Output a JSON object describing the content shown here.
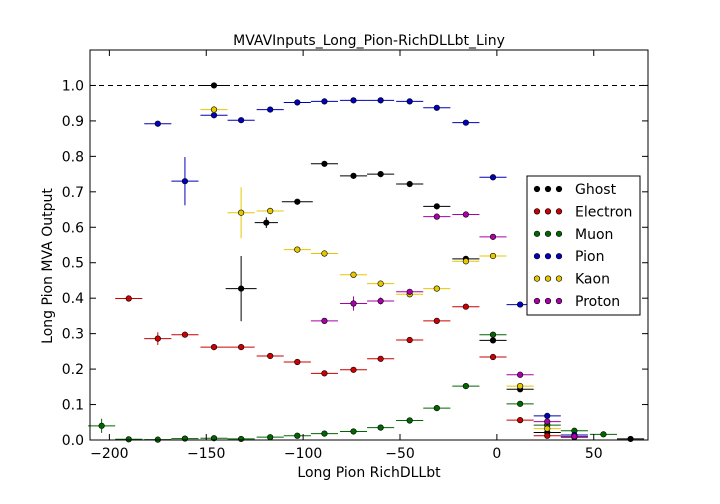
{
  "chart_data": {
    "type": "scatter",
    "title": "MVAVInputs_Long_Pion-RichDLLbt_Liny",
    "xlabel": "Long Pion RichDLLbt",
    "ylabel": "Long Pion MVA Output",
    "xlim": [
      -210,
      78
    ],
    "ylim": [
      0.0,
      1.1
    ],
    "xticks": [
      "−200",
      "−150",
      "−100",
      "−50",
      "0",
      "50"
    ],
    "yticks": [
      "0.0",
      "0.1",
      "0.2",
      "0.3",
      "0.4",
      "0.5",
      "0.6",
      "0.7",
      "0.8",
      "0.9",
      "1.0"
    ],
    "reference_line_y": 1.0,
    "grid": false,
    "legend_position": "right",
    "series": [
      {
        "name": "Ghost",
        "color": "#000000",
        "points": [
          {
            "x": -146,
            "y": 1.0,
            "xerr": 6,
            "yerr": 0.0
          },
          {
            "x": -119,
            "y": 0.613,
            "xerr": 6,
            "yerr": 0.015
          },
          {
            "x": -132,
            "y": 0.427,
            "xerr": 8,
            "yerr": 0.092
          },
          {
            "x": -103,
            "y": 0.672,
            "xerr": 8,
            "yerr": 0.0
          },
          {
            "x": -89,
            "y": 0.779,
            "xerr": 7,
            "yerr": 0.0
          },
          {
            "x": -74,
            "y": 0.745,
            "xerr": 7,
            "yerr": 0.0
          },
          {
            "x": -60,
            "y": 0.75,
            "xerr": 7,
            "yerr": 0.0
          },
          {
            "x": -45,
            "y": 0.722,
            "xerr": 7,
            "yerr": 0.0
          },
          {
            "x": -31,
            "y": 0.659,
            "xerr": 7,
            "yerr": 0.0
          },
          {
            "x": -16,
            "y": 0.511,
            "xerr": 7,
            "yerr": 0.0
          },
          {
            "x": -2,
            "y": 0.281,
            "xerr": 7,
            "yerr": 0.0
          },
          {
            "x": 12,
            "y": 0.143,
            "xerr": 7,
            "yerr": 0.0
          },
          {
            "x": 26,
            "y": 0.021,
            "xerr": 7,
            "yerr": 0.0
          },
          {
            "x": 40,
            "y": 0.008,
            "xerr": 7,
            "yerr": 0.0
          },
          {
            "x": 69,
            "y": 0.003,
            "xerr": 7,
            "yerr": 0.0
          }
        ]
      },
      {
        "name": "Electron",
        "color": "#cc0000",
        "points": [
          {
            "x": -190,
            "y": 0.399,
            "xerr": 7,
            "yerr": 0.0
          },
          {
            "x": -175,
            "y": 0.286,
            "xerr": 7,
            "yerr": 0.018
          },
          {
            "x": -161,
            "y": 0.297,
            "xerr": 7,
            "yerr": 0.008
          },
          {
            "x": -146,
            "y": 0.262,
            "xerr": 7,
            "yerr": 0.0
          },
          {
            "x": -132,
            "y": 0.262,
            "xerr": 7,
            "yerr": 0.0
          },
          {
            "x": -117,
            "y": 0.237,
            "xerr": 7,
            "yerr": 0.0
          },
          {
            "x": -103,
            "y": 0.22,
            "xerr": 7,
            "yerr": 0.0
          },
          {
            "x": -89,
            "y": 0.188,
            "xerr": 7,
            "yerr": 0.0
          },
          {
            "x": -74,
            "y": 0.198,
            "xerr": 7,
            "yerr": 0.0
          },
          {
            "x": -60,
            "y": 0.229,
            "xerr": 7,
            "yerr": 0.0
          },
          {
            "x": -45,
            "y": 0.282,
            "xerr": 7,
            "yerr": 0.0
          },
          {
            "x": -31,
            "y": 0.336,
            "xerr": 7,
            "yerr": 0.0
          },
          {
            "x": -16,
            "y": 0.376,
            "xerr": 7,
            "yerr": 0.0
          },
          {
            "x": -2,
            "y": 0.234,
            "xerr": 7,
            "yerr": 0.0
          },
          {
            "x": 12,
            "y": 0.056,
            "xerr": 7,
            "yerr": 0.0
          },
          {
            "x": 26,
            "y": 0.012,
            "xerr": 7,
            "yerr": 0.0
          }
        ]
      },
      {
        "name": "Muon",
        "color": "#006600",
        "points": [
          {
            "x": -204,
            "y": 0.04,
            "xerr": 7,
            "yerr": 0.02
          },
          {
            "x": -190,
            "y": 0.002,
            "xerr": 7,
            "yerr": 0.0
          },
          {
            "x": -175,
            "y": 0.001,
            "xerr": 7,
            "yerr": 0.0
          },
          {
            "x": -161,
            "y": 0.004,
            "xerr": 7,
            "yerr": 0.0
          },
          {
            "x": -146,
            "y": 0.005,
            "xerr": 7,
            "yerr": 0.0
          },
          {
            "x": -132,
            "y": 0.003,
            "xerr": 7,
            "yerr": 0.0
          },
          {
            "x": -117,
            "y": 0.008,
            "xerr": 7,
            "yerr": 0.0
          },
          {
            "x": -103,
            "y": 0.012,
            "xerr": 7,
            "yerr": 0.0
          },
          {
            "x": -89,
            "y": 0.018,
            "xerr": 7,
            "yerr": 0.0
          },
          {
            "x": -74,
            "y": 0.024,
            "xerr": 7,
            "yerr": 0.0
          },
          {
            "x": -60,
            "y": 0.035,
            "xerr": 7,
            "yerr": 0.0
          },
          {
            "x": -45,
            "y": 0.055,
            "xerr": 7,
            "yerr": 0.0
          },
          {
            "x": -31,
            "y": 0.09,
            "xerr": 7,
            "yerr": 0.0
          },
          {
            "x": -16,
            "y": 0.152,
            "xerr": 7,
            "yerr": 0.0
          },
          {
            "x": -2,
            "y": 0.297,
            "xerr": 7,
            "yerr": 0.0
          },
          {
            "x": 12,
            "y": 0.102,
            "xerr": 7,
            "yerr": 0.0
          },
          {
            "x": 26,
            "y": 0.042,
            "xerr": 7,
            "yerr": 0.0
          },
          {
            "x": 40,
            "y": 0.026,
            "xerr": 7,
            "yerr": 0.0
          },
          {
            "x": 55,
            "y": 0.016,
            "xerr": 7,
            "yerr": 0.0
          }
        ]
      },
      {
        "name": "Pion",
        "color": "#0000bb",
        "points": [
          {
            "x": -175,
            "y": 0.892,
            "xerr": 7,
            "yerr": 0.0
          },
          {
            "x": -161,
            "y": 0.73,
            "xerr": 7,
            "yerr": 0.068
          },
          {
            "x": -146,
            "y": 0.916,
            "xerr": 7,
            "yerr": 0.008
          },
          {
            "x": -132,
            "y": 0.902,
            "xerr": 7,
            "yerr": 0.0
          },
          {
            "x": -117,
            "y": 0.932,
            "xerr": 7,
            "yerr": 0.0
          },
          {
            "x": -103,
            "y": 0.952,
            "xerr": 7,
            "yerr": 0.0
          },
          {
            "x": -89,
            "y": 0.955,
            "xerr": 7,
            "yerr": 0.0
          },
          {
            "x": -74,
            "y": 0.958,
            "xerr": 7,
            "yerr": 0.0
          },
          {
            "x": -60,
            "y": 0.958,
            "xerr": 7,
            "yerr": 0.0
          },
          {
            "x": -45,
            "y": 0.955,
            "xerr": 7,
            "yerr": 0.0
          },
          {
            "x": -31,
            "y": 0.937,
            "xerr": 7,
            "yerr": 0.0
          },
          {
            "x": -16,
            "y": 0.895,
            "xerr": 7,
            "yerr": 0.0
          },
          {
            "x": -2,
            "y": 0.741,
            "xerr": 7,
            "yerr": 0.0
          },
          {
            "x": 12,
            "y": 0.382,
            "xerr": 7,
            "yerr": 0.0
          },
          {
            "x": 26,
            "y": 0.068,
            "xerr": 7,
            "yerr": 0.0
          },
          {
            "x": 40,
            "y": 0.014,
            "xerr": 7,
            "yerr": 0.0
          }
        ]
      },
      {
        "name": "Kaon",
        "color": "#e6c800",
        "points": [
          {
            "x": -146,
            "y": 0.932,
            "xerr": 7,
            "yerr": 0.01
          },
          {
            "x": -132,
            "y": 0.641,
            "xerr": 7,
            "yerr": 0.072
          },
          {
            "x": -117,
            "y": 0.646,
            "xerr": 7,
            "yerr": 0.01
          },
          {
            "x": -103,
            "y": 0.537,
            "xerr": 7,
            "yerr": 0.0
          },
          {
            "x": -89,
            "y": 0.526,
            "xerr": 7,
            "yerr": 0.0
          },
          {
            "x": -74,
            "y": 0.466,
            "xerr": 7,
            "yerr": 0.0
          },
          {
            "x": -60,
            "y": 0.441,
            "xerr": 7,
            "yerr": 0.0
          },
          {
            "x": -45,
            "y": 0.411,
            "xerr": 7,
            "yerr": 0.0
          },
          {
            "x": -31,
            "y": 0.427,
            "xerr": 7,
            "yerr": 0.0
          },
          {
            "x": -16,
            "y": 0.504,
            "xerr": 7,
            "yerr": 0.0
          },
          {
            "x": -2,
            "y": 0.519,
            "xerr": 7,
            "yerr": 0.0
          },
          {
            "x": 12,
            "y": 0.152,
            "xerr": 7,
            "yerr": 0.0
          },
          {
            "x": 26,
            "y": 0.032,
            "xerr": 7,
            "yerr": 0.0
          }
        ]
      },
      {
        "name": "Proton",
        "color": "#aa00aa",
        "points": [
          {
            "x": -89,
            "y": 0.336,
            "xerr": 7,
            "yerr": 0.0
          },
          {
            "x": -74,
            "y": 0.385,
            "xerr": 7,
            "yerr": 0.02
          },
          {
            "x": -60,
            "y": 0.392,
            "xerr": 7,
            "yerr": 0.01
          },
          {
            "x": -45,
            "y": 0.418,
            "xerr": 7,
            "yerr": 0.0
          },
          {
            "x": -31,
            "y": 0.63,
            "xerr": 7,
            "yerr": 0.0
          },
          {
            "x": -16,
            "y": 0.636,
            "xerr": 7,
            "yerr": 0.0
          },
          {
            "x": -2,
            "y": 0.573,
            "xerr": 7,
            "yerr": 0.0
          },
          {
            "x": 12,
            "y": 0.184,
            "xerr": 7,
            "yerr": 0.0
          },
          {
            "x": 26,
            "y": 0.052,
            "xerr": 7,
            "yerr": 0.0
          },
          {
            "x": 40,
            "y": 0.01,
            "xerr": 7,
            "yerr": 0.0
          }
        ]
      }
    ]
  }
}
